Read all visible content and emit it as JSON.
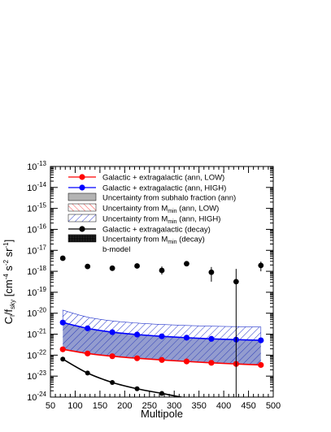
{
  "chart_data": {
    "type": "scatter",
    "xlabel": "Multipole",
    "ylabel_main": "C",
    "ylabel_sub1": "l",
    "ylabel_mid": "/f",
    "ylabel_sub2": "sky",
    "ylabel_units": " [cm",
    "ylabel_exp1": "-4",
    "ylabel_units2": " s",
    "ylabel_exp2": "-2",
    "ylabel_units3": " sr",
    "ylabel_exp3": "-1",
    "ylabel_close": "]",
    "xlim": [
      50,
      500
    ],
    "ylim": [
      1e-24,
      1e-13
    ],
    "yscale": "log",
    "x_ticks": [
      50,
      100,
      150,
      200,
      250,
      300,
      350,
      400,
      450,
      500
    ],
    "y_tick_exponents": [
      -24,
      -23,
      -22,
      -21,
      -20,
      -19,
      -18,
      -17,
      -16,
      -15,
      -14,
      -13
    ],
    "y_tick_base": "10",
    "x": [
      75,
      125,
      175,
      225,
      275,
      325,
      375,
      425,
      475
    ],
    "series": [
      {
        "name": "Galactic + extragalactic (ann, LOW)",
        "color": "#ff0000",
        "values": [
          1.9e-22,
          1.2e-22,
          8.9e-23,
          7.1e-23,
          5.9e-23,
          5e-23,
          4.3e-23,
          3.8e-23,
          3.4e-23
        ]
      },
      {
        "name": "Galactic + extragalactic (ann, HIGH)",
        "color": "#0000ff",
        "values": [
          3.6e-21,
          1.9e-21,
          1.25e-21,
          9.6e-22,
          7.9e-22,
          6.8e-22,
          6e-22,
          5.5e-22,
          5.1e-22
        ]
      },
      {
        "name": "Galactic + extragalactic (decay)",
        "color": "#000000",
        "values": [
          6.5e-23,
          1.4e-23,
          5e-24,
          2.5e-24,
          1.5e-24,
          9e-25,
          6e-25,
          4e-25,
          3e-25
        ]
      },
      {
        "name": "b-model",
        "color": "#000000",
        "values": [
          4.2e-18,
          1.7e-18,
          1.4e-18,
          1.8e-18,
          1.1e-18,
          2.3e-18,
          9e-19,
          3.2e-19,
          1.9e-18
        ],
        "err_low": [
          4.2e-18,
          1.7e-18,
          1.4e-18,
          1.8e-18,
          7e-19,
          2.3e-18,
          3.2e-19,
          1e-24,
          1e-18
        ],
        "err_high": [
          4.2e-18,
          1.7e-18,
          1.4e-18,
          1.8e-18,
          1.7e-18,
          2.3e-18,
          1.6e-18,
          1.3e-18,
          2.9e-18
        ]
      }
    ],
    "bands": [
      {
        "name": "Uncertainty from subhalo fraction (ann)",
        "color": "#b3b3b3"
      },
      {
        "name": "Uncertainty from M",
        "sub": "min",
        "suffix": " (ann, LOW)",
        "color": "#ff6666"
      },
      {
        "name": "Uncertainty from M",
        "sub": "min",
        "suffix": " (ann, HIGH)",
        "color": "#2233cc",
        "upper": [
          1.4e-20,
          6.5e-21,
          4.3e-21,
          3.4e-21,
          2.9e-21,
          2.6e-21,
          2.4e-21,
          2.3e-21,
          2.2e-21
        ]
      },
      {
        "name": "Uncertainty from M",
        "sub": "min",
        "suffix": " (decay)",
        "color": "#000000"
      }
    ],
    "legend": [
      "Galactic + extragalactic (ann, LOW)",
      "Galactic + extragalactic (ann, HIGH)",
      "Uncertainty from subhalo fraction (ann)",
      "Uncertainty from M_min (ann, LOW)",
      "Uncertainty from M_min (ann, HIGH)",
      "Galactic + extragalactic (decay)",
      "Uncertainty from M_min (decay)",
      "b-model"
    ],
    "legend_position": "top-right",
    "grid": false
  }
}
